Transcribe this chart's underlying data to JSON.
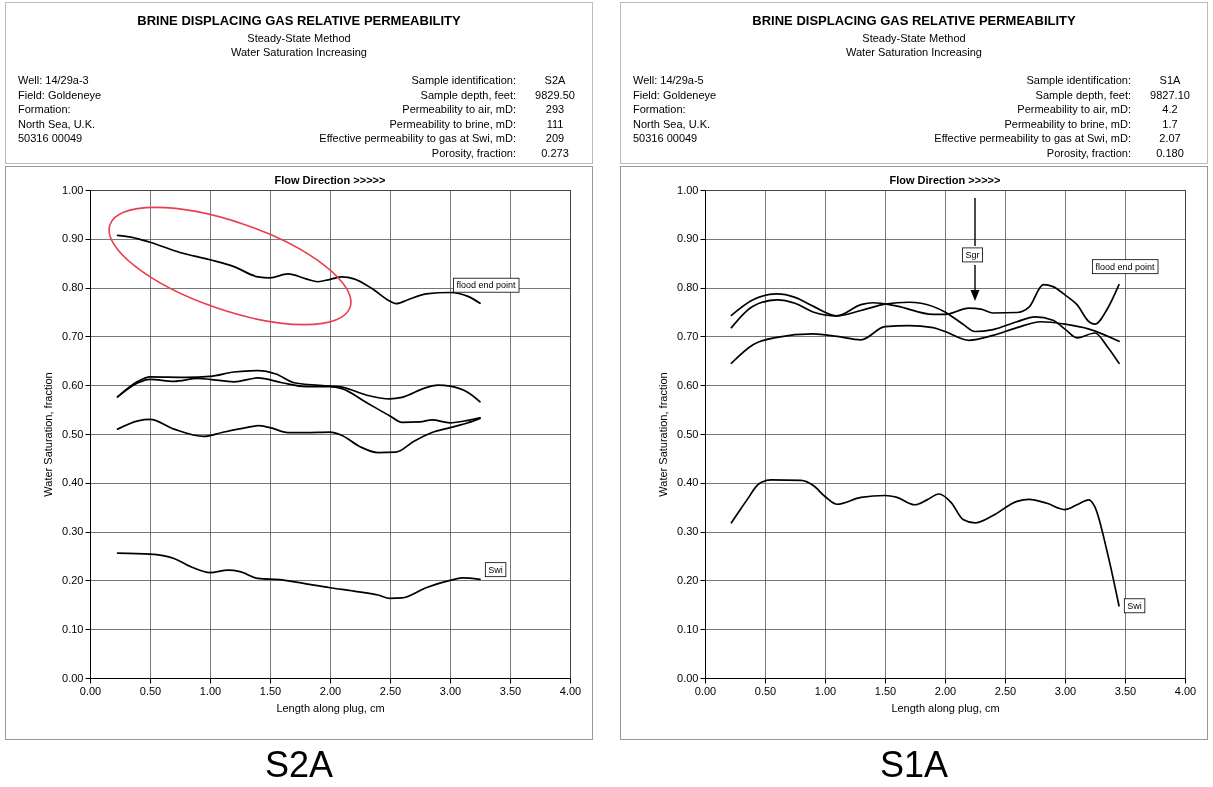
{
  "chart_data": [
    {
      "type": "line",
      "title": "BRINE DISPLACING GAS RELATIVE PERMEABILITY",
      "subtitle": "Steady-State Method\nWater Saturation Increasing",
      "xlabel": "Length along plug, cm",
      "ylabel": "Water Saturation, fraction",
      "annotations": [
        "Well: 14/29a-3",
        "Field: Goldeneye",
        "Formation:",
        "North Sea, U.K.",
        "50316 00049",
        "Sample identification:",
        "S2A",
        "Sample depth, feet:",
        "9829.50",
        "Permeability to air, mD:",
        "293",
        "Permeability to brine, mD:",
        "111",
        "Effective permeability to gas at Swi, mD:",
        "209",
        "Porosity, fraction:",
        "0.273",
        "Flow Direction >>>>>",
        {
          "text": "flood end point",
          "x": 3.25,
          "y": 0.768
        },
        {
          "text": "Swi",
          "x": 3.38,
          "y": 0.222
        },
        "S2A"
      ],
      "series": [
        {
          "color": "#000000",
          "x": [
            0.23,
            0.35,
            0.5,
            0.75,
            1.0,
            1.2,
            1.4,
            1.5,
            1.65,
            1.8,
            1.9,
            2.0,
            2.1,
            2.2,
            2.35,
            2.5,
            2.55,
            2.65,
            2.8,
            3.0,
            3.15,
            3.25
          ],
          "values": [
            0.907,
            0.903,
            0.893,
            0.872,
            0.857,
            0.843,
            0.822,
            0.82,
            0.828,
            0.818,
            0.812,
            0.817,
            0.822,
            0.818,
            0.798,
            0.772,
            0.767,
            0.775,
            0.787,
            0.79,
            0.782,
            0.768
          ]
        },
        {
          "color": "#000000",
          "x": [
            0.23,
            0.4,
            0.5,
            0.8,
            1.0,
            1.2,
            1.4,
            1.55,
            1.7,
            2.0,
            2.1,
            2.3,
            2.5,
            2.6,
            2.8,
            2.9,
            3.0,
            3.15,
            3.25
          ],
          "values": [
            0.576,
            0.608,
            0.617,
            0.616,
            0.618,
            0.627,
            0.63,
            0.623,
            0.605,
            0.598,
            0.596,
            0.58,
            0.572,
            0.575,
            0.595,
            0.6,
            0.598,
            0.585,
            0.566
          ]
        },
        {
          "color": "#000000",
          "x": [
            0.23,
            0.4,
            0.5,
            0.7,
            0.9,
            1.0,
            1.2,
            1.4,
            1.6,
            1.8,
            2.0,
            2.1,
            2.3,
            2.5,
            2.6,
            2.75,
            2.85,
            3.0,
            3.15,
            3.25
          ],
          "values": [
            0.576,
            0.605,
            0.612,
            0.608,
            0.614,
            0.612,
            0.607,
            0.615,
            0.605,
            0.597,
            0.597,
            0.593,
            0.565,
            0.537,
            0.524,
            0.525,
            0.529,
            0.523,
            0.528,
            0.533
          ]
        },
        {
          "color": "#000000",
          "x": [
            0.23,
            0.4,
            0.5,
            0.7,
            0.95,
            1.1,
            1.3,
            1.4,
            1.5,
            1.65,
            1.8,
            2.0,
            2.1,
            2.25,
            2.4,
            2.55,
            2.7,
            2.85,
            3.0,
            3.15,
            3.25
          ],
          "values": [
            0.51,
            0.527,
            0.53,
            0.51,
            0.495,
            0.503,
            0.513,
            0.517,
            0.513,
            0.503,
            0.503,
            0.504,
            0.497,
            0.474,
            0.462,
            0.463,
            0.485,
            0.503,
            0.513,
            0.523,
            0.532
          ]
        },
        {
          "color": "#000000",
          "x": [
            0.23,
            0.5,
            0.7,
            0.85,
            1.0,
            1.15,
            1.25,
            1.4,
            1.6,
            1.8,
            2.0,
            2.2,
            2.4,
            2.5,
            2.6,
            2.8,
            3.0,
            3.1,
            3.25
          ],
          "values": [
            0.256,
            0.254,
            0.245,
            0.227,
            0.216,
            0.221,
            0.218,
            0.204,
            0.201,
            0.193,
            0.185,
            0.178,
            0.17,
            0.163,
            0.164,
            0.185,
            0.2,
            0.205,
            0.202
          ]
        }
      ],
      "xlim": [
        0,
        4
      ],
      "xticks": [
        {
          "value": 0,
          "label": "0.00"
        },
        {
          "value": 0.5,
          "label": "0.50"
        },
        {
          "value": 1,
          "label": "1.00"
        },
        {
          "value": 1.5,
          "label": "1.50"
        },
        {
          "value": 2,
          "label": "2.00"
        },
        {
          "value": 2.5,
          "label": "2.50"
        },
        {
          "value": 3,
          "label": "3.00"
        },
        {
          "value": 3.5,
          "label": "3.50"
        },
        {
          "value": 4,
          "label": "4.00"
        }
      ],
      "ylim": [
        0,
        1
      ],
      "yticks": [
        {
          "value": 0,
          "label": "0.00"
        },
        {
          "value": 0.1,
          "label": "0.10"
        },
        {
          "value": 0.2,
          "label": "0.20"
        },
        {
          "value": 0.3,
          "label": "0.30"
        },
        {
          "value": 0.4,
          "label": "0.40"
        },
        {
          "value": 0.5,
          "label": "0.50"
        },
        {
          "value": 0.6,
          "label": "0.60"
        },
        {
          "value": 0.7,
          "label": "0.70"
        },
        {
          "value": 0.8,
          "label": "0.80"
        },
        {
          "value": 0.9,
          "label": "0.90"
        },
        {
          "value": 1,
          "label": "1.00"
        }
      ],
      "grid": true
    },
    {
      "type": "line",
      "title": "BRINE DISPLACING GAS RELATIVE PERMEABILITY",
      "subtitle": "Steady-State Method\nWater Saturation Increasing",
      "xlabel": "Length along plug, cm",
      "ylabel": "Water Saturation, fraction",
      "annotations": [
        "Well: 14/29a-5",
        "Field: Goldeneye",
        "Formation:",
        "North Sea, U.K.",
        "50316 00049",
        "Sample identification:",
        "S1A",
        "Sample depth, feet:",
        "9827.10",
        "Permeability to air, mD:",
        "4.2",
        "Permeability to brine, mD:",
        "1.7",
        "Effective permeability to gas at Swi, mD:",
        "2.07",
        "Porosity, fraction:",
        "0.180",
        "Flow Direction >>>>>",
        {
          "text": "Sgr",
          "x": 2.23,
          "y": 0.867
        },
        {
          "text": "flood end point",
          "x": 3.45,
          "y": 0.806
        },
        {
          "text": "Swi",
          "x": 3.58,
          "y": 0.148
        },
        "S1A"
      ],
      "series": [
        {
          "color": "#000000",
          "x": [
            0.22,
            0.4,
            0.6,
            0.75,
            0.9,
            1.1,
            1.3,
            1.4,
            1.6,
            1.9,
            2.0,
            2.2,
            2.3,
            2.4,
            2.6,
            2.7,
            2.82,
            2.9,
            3.0,
            3.1,
            3.2,
            3.25,
            3.35,
            3.45
          ],
          "values": [
            0.718,
            0.762,
            0.775,
            0.768,
            0.75,
            0.742,
            0.765,
            0.769,
            0.762,
            0.745,
            0.745,
            0.758,
            0.756,
            0.748,
            0.749,
            0.76,
            0.806,
            0.802,
            0.785,
            0.765,
            0.73,
            0.725,
            0.755,
            0.806
          ]
        },
        {
          "color": "#000000",
          "x": [
            0.22,
            0.4,
            0.6,
            0.75,
            0.9,
            1.1,
            1.3,
            1.5,
            1.7,
            1.8,
            2.0,
            2.15,
            2.25,
            2.4,
            2.6,
            2.75,
            2.9,
            3.0,
            3.1,
            3.25,
            3.35,
            3.45
          ],
          "values": [
            0.743,
            0.775,
            0.787,
            0.78,
            0.762,
            0.742,
            0.753,
            0.766,
            0.77,
            0.768,
            0.75,
            0.725,
            0.71,
            0.714,
            0.73,
            0.74,
            0.733,
            0.715,
            0.697,
            0.707,
            0.68,
            0.645
          ]
        },
        {
          "color": "#000000",
          "x": [
            0.22,
            0.4,
            0.6,
            0.9,
            1.1,
            1.3,
            1.5,
            1.7,
            1.9,
            2.0,
            2.2,
            2.4,
            2.6,
            2.8,
            3.0,
            3.2,
            3.45
          ],
          "values": [
            0.645,
            0.683,
            0.698,
            0.705,
            0.7,
            0.693,
            0.72,
            0.722,
            0.718,
            0.71,
            0.692,
            0.702,
            0.718,
            0.73,
            0.725,
            0.715,
            0.69
          ]
        },
        {
          "color": "#000000",
          "x": [
            0.22,
            0.35,
            0.45,
            0.55,
            0.8,
            0.9,
            1.0,
            1.1,
            1.3,
            1.5,
            1.6,
            1.75,
            1.85,
            1.95,
            2.05,
            2.15,
            2.25,
            2.4,
            2.6,
            2.7,
            2.85,
            3.0,
            3.1,
            3.2,
            3.25,
            3.35,
            3.45
          ],
          "values": [
            0.318,
            0.365,
            0.398,
            0.406,
            0.405,
            0.395,
            0.372,
            0.356,
            0.37,
            0.374,
            0.37,
            0.355,
            0.365,
            0.377,
            0.36,
            0.325,
            0.318,
            0.333,
            0.362,
            0.366,
            0.358,
            0.345,
            0.355,
            0.365,
            0.35,
            0.26,
            0.148
          ]
        }
      ],
      "xlim": [
        0,
        4
      ],
      "xticks": [
        {
          "value": 0,
          "label": "0.00"
        },
        {
          "value": 0.5,
          "label": "0.50"
        },
        {
          "value": 1,
          "label": "1.00"
        },
        {
          "value": 1.5,
          "label": "1.50"
        },
        {
          "value": 2,
          "label": "2.00"
        },
        {
          "value": 2.5,
          "label": "2.50"
        },
        {
          "value": 3,
          "label": "3.00"
        },
        {
          "value": 3.5,
          "label": "3.50"
        },
        {
          "value": 4,
          "label": "4.00"
        }
      ],
      "ylim": [
        0,
        1
      ],
      "yticks": [
        {
          "value": 0,
          "label": "0.00"
        },
        {
          "value": 0.1,
          "label": "0.10"
        },
        {
          "value": 0.2,
          "label": "0.20"
        },
        {
          "value": 0.3,
          "label": "0.30"
        },
        {
          "value": 0.4,
          "label": "0.40"
        },
        {
          "value": 0.5,
          "label": "0.50"
        },
        {
          "value": 0.6,
          "label": "0.60"
        },
        {
          "value": 0.7,
          "label": "0.70"
        },
        {
          "value": 0.8,
          "label": "0.80"
        },
        {
          "value": 0.9,
          "label": "0.90"
        },
        {
          "value": 1,
          "label": "1.00"
        }
      ],
      "grid": true
    }
  ]
}
